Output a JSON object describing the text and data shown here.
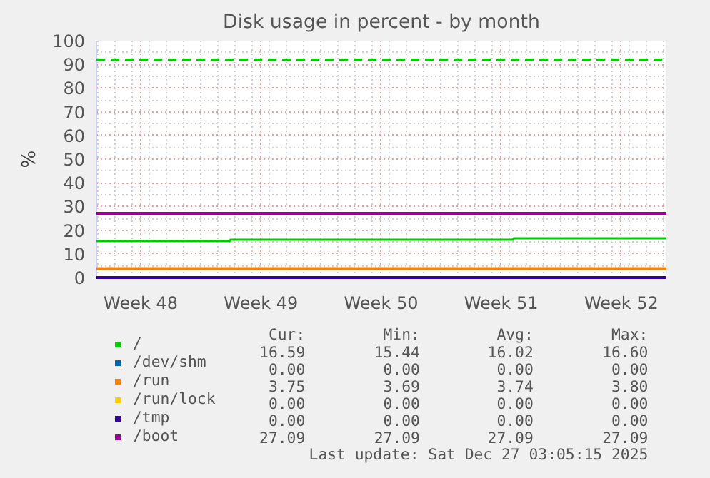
{
  "chart_data": {
    "type": "line",
    "title": "Disk usage in percent - by month",
    "ylabel": "%",
    "xlim": [
      "2025-11-23T22:00",
      "2025-12-27T03:00"
    ],
    "xticks": [
      {
        "value": "2025-11-26T12:00",
        "label": "Week 48"
      },
      {
        "value": "2025-12-03T12:00",
        "label": "Week 49"
      },
      {
        "value": "2025-12-10T12:00",
        "label": "Week 50"
      },
      {
        "value": "2025-12-17T12:00",
        "label": "Week 51"
      },
      {
        "value": "2025-12-24T12:00",
        "label": "Week 52"
      }
    ],
    "ylim": [
      0,
      100
    ],
    "yticks": [
      0,
      10,
      20,
      30,
      40,
      50,
      60,
      70,
      80,
      90,
      100
    ],
    "grid": true,
    "legend": "bottom",
    "series": [
      {
        "name": "/",
        "color": "#00cc00",
        "type": "step",
        "x": [
          "2025-11-23T22:00",
          "2025-12-01T17:00",
          "2025-12-18T05:00",
          "2025-12-27T03:00"
        ],
        "values": [
          15.4,
          16.0,
          16.6,
          16.6
        ]
      },
      {
        "name": "/dev/shm",
        "color": "#0066b3",
        "values": [
          null
        ]
      },
      {
        "name": "/run",
        "color": "#ff8000",
        "x": [
          "2025-11-23T22:00",
          "2025-11-24T06:00",
          "2025-11-24T09:00",
          "2025-11-24T12:00",
          "2025-12-27T03:00"
        ],
        "values": [
          3.8,
          3.8,
          3.7,
          3.8,
          3.8
        ]
      },
      {
        "name": "/run/lock",
        "color": "#ffcc00",
        "values": [
          null
        ]
      },
      {
        "name": "/tmp",
        "color": "#330099",
        "x": [
          "2025-11-23T22:00",
          "2025-12-27T03:00"
        ],
        "values": [
          0,
          0
        ]
      },
      {
        "name": "/boot",
        "color": "#990099",
        "x": [
          "2025-11-23T22:00",
          "2025-12-27T03:00"
        ],
        "values": [
          27.1,
          27.1
        ]
      }
    ],
    "ref_lines": [
      {
        "axis": "y",
        "value": 92,
        "color": "#00cc00",
        "line_style": "dashed"
      }
    ],
    "annotations": [
      "Cur:",
      "Min:",
      "Avg:",
      "Max:",
      "16.59",
      "15.44",
      "16.02",
      "16.60",
      "0.00",
      "0.00",
      "0.00",
      "0.00",
      "3.75",
      "3.69",
      "3.74",
      "3.80",
      "0.00",
      "0.00",
      "0.00",
      "0.00",
      "0.00",
      "0.00",
      "0.00",
      "0.00",
      "27.09",
      "27.09",
      "27.09",
      "27.09",
      "Last update: Sat Dec 27 03:05:15 2025"
    ]
  }
}
